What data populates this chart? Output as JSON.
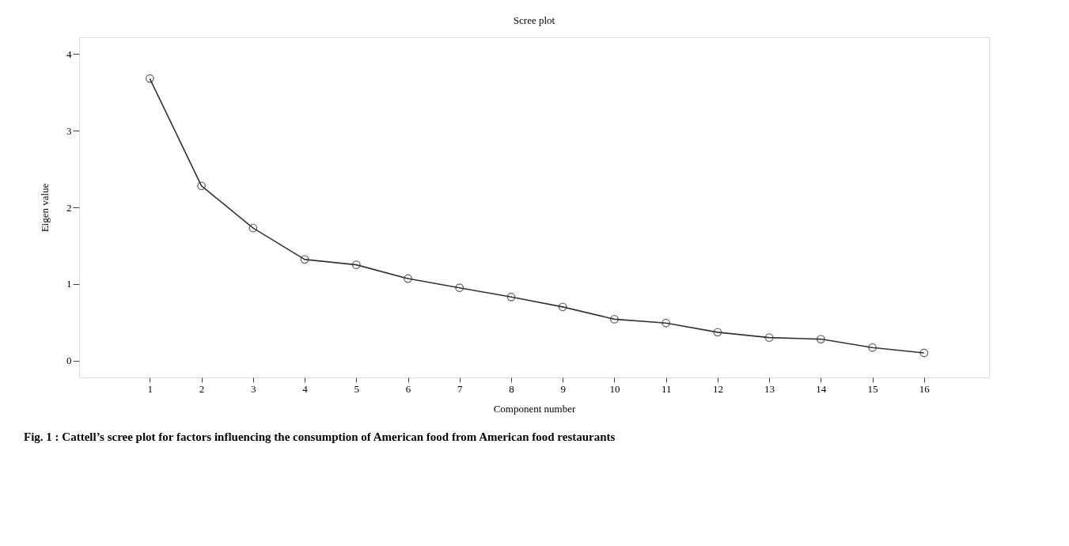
{
  "chart_data": {
    "type": "line",
    "title": "Scree plot",
    "xlabel": "Component number",
    "ylabel": "Eigen value",
    "x": [
      1,
      2,
      3,
      4,
      5,
      6,
      7,
      8,
      9,
      10,
      11,
      12,
      13,
      14,
      15,
      16
    ],
    "series": [
      {
        "color": "#333333",
        "values": [
          3.68,
          2.28,
          1.73,
          1.32,
          1.25,
          1.07,
          0.95,
          0.83,
          0.7,
          0.54,
          0.49,
          0.37,
          0.3,
          0.28,
          0.17,
          0.1
        ]
      }
    ],
    "xlim": [
      -0.37,
      17.26
    ],
    "xticks": [
      1,
      2,
      3,
      4,
      5,
      6,
      7,
      8,
      9,
      10,
      11,
      12,
      13,
      14,
      15,
      16
    ],
    "ylim": [
      -0.22,
      4.22
    ],
    "yticks": [
      0,
      1,
      2,
      3,
      4
    ],
    "marker": "circle",
    "line_style": "solid",
    "grid": false,
    "legend": false,
    "annotations": [
      "Fig. 1 :  Cattell’s scree plot for factors influencing the consumption of American food from American food restaurants"
    ]
  }
}
